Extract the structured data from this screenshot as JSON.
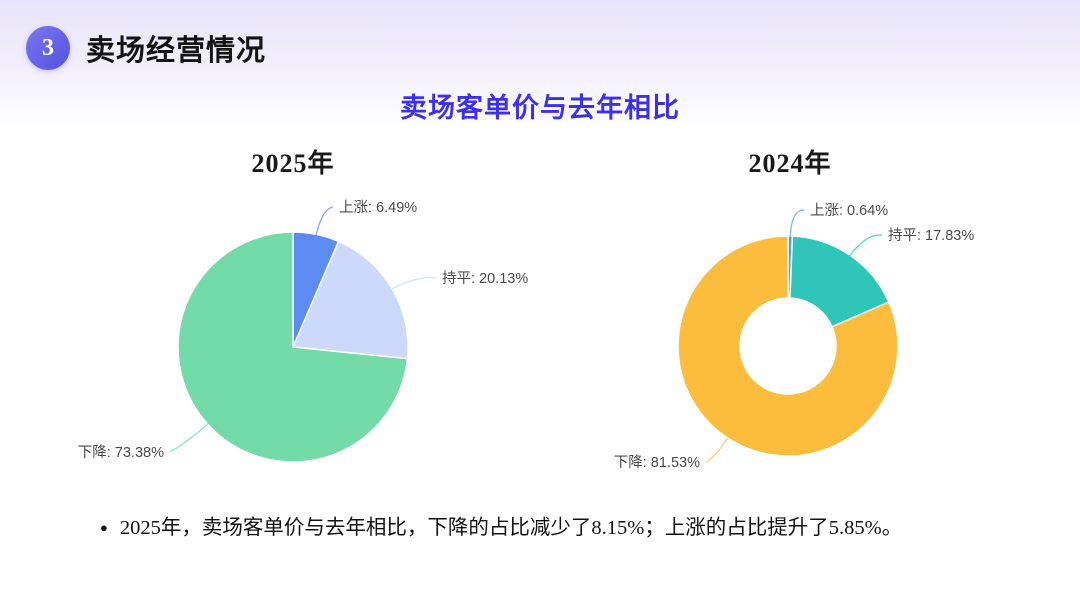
{
  "page": {
    "section_badge": "3",
    "section_title": "卖场经营情况",
    "chart_title": "卖场客单价与去年相比",
    "bullet_glyph": "●",
    "bullet_text": "2025年，卖场客单价与去年相比，下降的占比减少了8.15%；上涨的占比提升了5.85%。"
  },
  "colors": {
    "accent_purple": "#5451e0",
    "title_blue": "#3b2ff0",
    "label_gray": "#4a4a4a"
  },
  "chart_data": [
    {
      "type": "pie",
      "title": "2025年",
      "categories": [
        "上涨",
        "持平",
        "下降"
      ],
      "values": [
        6.49,
        20.13,
        73.38
      ],
      "unit": "%",
      "labels": [
        "上涨: 6.49%",
        "持平: 20.13%",
        "下降: 73.38%"
      ],
      "colors": [
        "#5c8cf2",
        "#ccd9fa",
        "#72dba7"
      ],
      "donut": false,
      "legend_position": "none",
      "start_angle_deg": 0,
      "direction": "clockwise"
    },
    {
      "type": "pie",
      "title": "2024年",
      "categories": [
        "上涨",
        "持平",
        "下降"
      ],
      "values": [
        0.64,
        17.83,
        81.53
      ],
      "unit": "%",
      "labels": [
        "上涨: 0.64%",
        "持平: 17.83%",
        "下降: 81.53%"
      ],
      "colors": [
        "#4f9bf2",
        "#2fc6b9",
        "#fcbd3c"
      ],
      "donut": true,
      "legend_position": "none",
      "start_angle_deg": 0,
      "direction": "clockwise"
    }
  ]
}
